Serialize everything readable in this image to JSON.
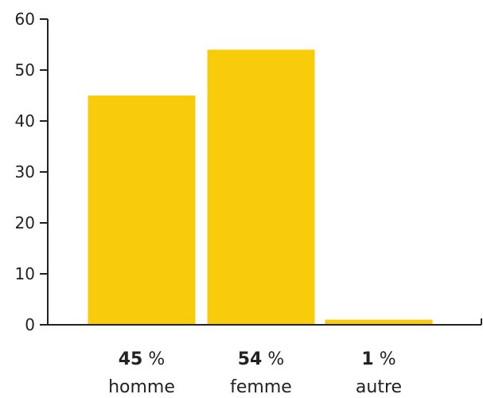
{
  "chart_data": {
    "type": "bar",
    "title": "",
    "xlabel": "",
    "ylabel": "",
    "categories": [
      "homme",
      "femme",
      "autre"
    ],
    "values": [
      45,
      54,
      1
    ],
    "value_labels": [
      "45",
      "54",
      "1"
    ],
    "value_unit": "%",
    "ylim": [
      0,
      60
    ],
    "yticks": [
      0,
      10,
      20,
      30,
      40,
      50,
      60
    ],
    "grid": false,
    "legend": "none",
    "colors": {
      "bar": "#f9cc0b",
      "axis": "#222222",
      "text": "#222222"
    }
  }
}
